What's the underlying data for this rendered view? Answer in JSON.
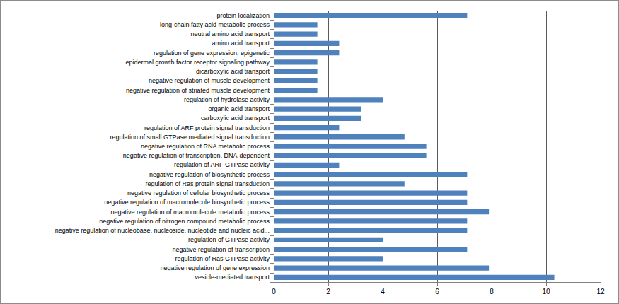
{
  "chart_data": {
    "type": "bar",
    "orientation": "horizontal",
    "color": "#4f81bd",
    "grid": true,
    "categories": [
      "protein localization",
      "long-chain fatty acid metabolic process",
      "neutral amino acid transport",
      "amino acid transport",
      "regulation of gene expression, epigenetic",
      "epidermal growth factor receptor signaling pathway",
      "dicarboxylic acid transport",
      "negative regulation of muscle development",
      "negative regulation of striated muscle development",
      "regulation of hydrolase activity",
      "organic acid transport",
      "carboxylic acid transport",
      "regulation of ARF protein signal transduction",
      "regulation of small GTPase mediated signal transduction",
      "negative regulation of RNA metabolic process",
      "negative regulation of transcription, DNA-dependent",
      "regulation of ARF GTPase activity",
      "negative regulation of biosynthetic process",
      "regulation of Ras protein signal transduction",
      "negative regulation of cellular biosynthetic process",
      "negative regulation of macromolecule biosynthetic process",
      "negative regulation of macromolecule metabolic process",
      "negative regulation of nitrogen compound metabolic process",
      "negative regulation of nucleobase, nucleoside, nucleotide and nucleic acid...",
      "regulation of GTPase activity",
      "negative regulation of transcription",
      "regulation of Ras GTPase activity",
      "negative regulation of gene expression",
      "vesicle-mediated transport"
    ],
    "values": [
      7.1,
      1.6,
      1.6,
      2.4,
      2.4,
      1.6,
      1.6,
      1.6,
      1.6,
      4.0,
      3.2,
      3.2,
      2.4,
      4.8,
      5.6,
      5.6,
      2.4,
      7.1,
      4.8,
      7.1,
      7.1,
      7.9,
      7.1,
      7.1,
      4.0,
      7.1,
      4.0,
      7.9,
      10.3
    ],
    "xlim": [
      0,
      12
    ],
    "xticks": [
      0,
      2,
      4,
      6,
      8,
      10,
      12
    ]
  }
}
